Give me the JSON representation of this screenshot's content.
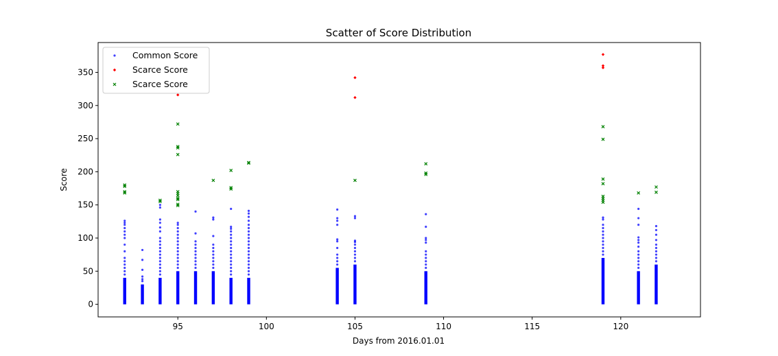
{
  "chart_data": {
    "type": "scatter",
    "title": "Scatter of Score Distribution",
    "xlabel": "Days from 2016.01.01",
    "ylabel": "Score",
    "xlim": [
      90.5,
      124.5
    ],
    "ylim": [
      -19,
      395
    ],
    "xticks": [
      95,
      100,
      105,
      110,
      115,
      120
    ],
    "yticks": [
      0,
      50,
      100,
      150,
      200,
      250,
      300,
      350
    ],
    "grid": false,
    "legend_position": "upper-left",
    "series": [
      {
        "name": "Common Score",
        "color": "#0000ff",
        "marker": "circle",
        "columns": [
          {
            "x": 92,
            "dense_max": 40,
            "outliers": [
              45,
              50,
              55,
              60,
              65,
              70,
              80,
              90,
              100,
              105,
              110,
              115,
              120,
              123,
              126
            ]
          },
          {
            "x": 93,
            "dense_max": 30,
            "outliers": [
              35,
              38,
              42,
              52,
              67,
              82
            ]
          },
          {
            "x": 94,
            "dense_max": 40,
            "outliers": [
              45,
              50,
              55,
              60,
              65,
              70,
              75,
              80,
              85,
              90,
              95,
              100,
              110,
              116,
              123,
              128,
              146,
              150
            ]
          },
          {
            "x": 95,
            "dense_max": 50,
            "outliers": [
              55,
              60,
              65,
              70,
              75,
              80,
              85,
              90,
              95,
              100,
              105,
              110,
              115,
              120,
              123
            ]
          },
          {
            "x": 96,
            "dense_max": 50,
            "outliers": [
              55,
              60,
              65,
              70,
              75,
              80,
              85,
              90,
              95,
              107,
              140
            ]
          },
          {
            "x": 97,
            "dense_max": 50,
            "outliers": [
              55,
              60,
              65,
              70,
              75,
              80,
              85,
              90,
              103,
              128,
              131
            ]
          },
          {
            "x": 98,
            "dense_max": 40,
            "outliers": [
              45,
              50,
              55,
              60,
              65,
              70,
              75,
              80,
              85,
              90,
              95,
              100,
              105,
              110,
              114,
              117,
              144
            ]
          },
          {
            "x": 99,
            "dense_max": 40,
            "outliers": [
              45,
              50,
              55,
              60,
              65,
              70,
              75,
              80,
              85,
              90,
              95,
              100,
              105,
              110,
              115,
              120,
              126,
              132,
              137,
              141
            ]
          },
          {
            "x": 104,
            "dense_max": 55,
            "outliers": [
              60,
              65,
              70,
              75,
              85,
              95,
              98,
              120,
              126,
              130,
              143
            ]
          },
          {
            "x": 105,
            "dense_max": 60,
            "outliers": [
              65,
              70,
              75,
              80,
              85,
              90,
              94,
              96,
              130,
              133
            ]
          },
          {
            "x": 109,
            "dense_max": 50,
            "outliers": [
              55,
              60,
              65,
              70,
              75,
              80,
              93,
              97,
              100,
              117,
              136
            ]
          },
          {
            "x": 119,
            "dense_max": 70,
            "outliers": [
              75,
              80,
              85,
              90,
              95,
              100,
              105,
              110,
              115,
              120,
              128,
              131
            ]
          },
          {
            "x": 121,
            "dense_max": 50,
            "outliers": [
              55,
              60,
              65,
              70,
              75,
              80,
              87,
              93,
              97,
              101,
              120,
              130,
              144
            ]
          },
          {
            "x": 122,
            "dense_max": 60,
            "outliers": [
              65,
              70,
              75,
              80,
              85,
              90,
              97,
              105,
              112,
              118
            ]
          }
        ]
      },
      {
        "name": "Scarce Score",
        "color": "#ff0000",
        "marker": "diamond",
        "points": [
          {
            "x": 95,
            "y": 316
          },
          {
            "x": 105,
            "y": 342
          },
          {
            "x": 105,
            "y": 312
          },
          {
            "x": 119,
            "y": 377
          },
          {
            "x": 119,
            "y": 360
          },
          {
            "x": 119,
            "y": 357
          }
        ]
      },
      {
        "name": "Scarce Score",
        "color": "#008000",
        "marker": "x",
        "points": [
          {
            "x": 92,
            "y": 180
          },
          {
            "x": 92,
            "y": 178
          },
          {
            "x": 92,
            "y": 170
          },
          {
            "x": 92,
            "y": 168
          },
          {
            "x": 94,
            "y": 157
          },
          {
            "x": 94,
            "y": 155
          },
          {
            "x": 95,
            "y": 272
          },
          {
            "x": 95,
            "y": 238
          },
          {
            "x": 95,
            "y": 236
          },
          {
            "x": 95,
            "y": 226
          },
          {
            "x": 95,
            "y": 170
          },
          {
            "x": 95,
            "y": 167
          },
          {
            "x": 95,
            "y": 164
          },
          {
            "x": 95,
            "y": 160
          },
          {
            "x": 95,
            "y": 158
          },
          {
            "x": 95,
            "y": 151
          },
          {
            "x": 95,
            "y": 149
          },
          {
            "x": 97,
            "y": 187
          },
          {
            "x": 98,
            "y": 202
          },
          {
            "x": 98,
            "y": 176
          },
          {
            "x": 98,
            "y": 174
          },
          {
            "x": 99,
            "y": 214
          },
          {
            "x": 99,
            "y": 213
          },
          {
            "x": 105,
            "y": 187
          },
          {
            "x": 109,
            "y": 212
          },
          {
            "x": 109,
            "y": 198
          },
          {
            "x": 109,
            "y": 196
          },
          {
            "x": 119,
            "y": 268
          },
          {
            "x": 119,
            "y": 249
          },
          {
            "x": 119,
            "y": 189
          },
          {
            "x": 119,
            "y": 182
          },
          {
            "x": 119,
            "y": 163
          },
          {
            "x": 119,
            "y": 160
          },
          {
            "x": 119,
            "y": 157
          },
          {
            "x": 119,
            "y": 154
          },
          {
            "x": 121,
            "y": 168
          },
          {
            "x": 122,
            "y": 177
          },
          {
            "x": 122,
            "y": 169
          }
        ]
      }
    ]
  }
}
